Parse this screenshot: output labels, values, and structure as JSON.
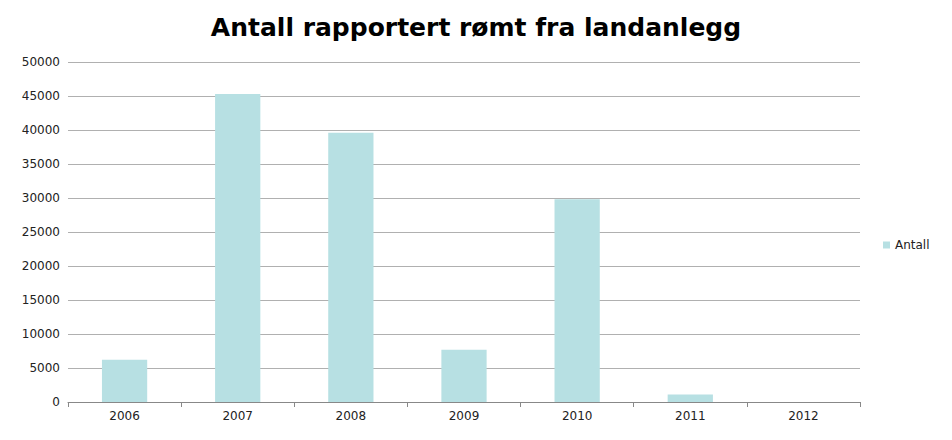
{
  "chart_data": {
    "type": "bar",
    "title": "Antall rapportert rømt fra landanlegg",
    "categories": [
      "2006",
      "2007",
      "2008",
      "2009",
      "2010",
      "2011",
      "2012"
    ],
    "series": [
      {
        "name": "Antall",
        "color": "#b7e0e3",
        "values": [
          6200,
          45300,
          39600,
          7700,
          29800,
          1100,
          0
        ]
      }
    ],
    "ylim": [
      0,
      50000
    ],
    "yticks": [
      0,
      5000,
      10000,
      15000,
      20000,
      25000,
      30000,
      35000,
      40000,
      45000,
      50000
    ],
    "grid": true,
    "legend": "right"
  }
}
